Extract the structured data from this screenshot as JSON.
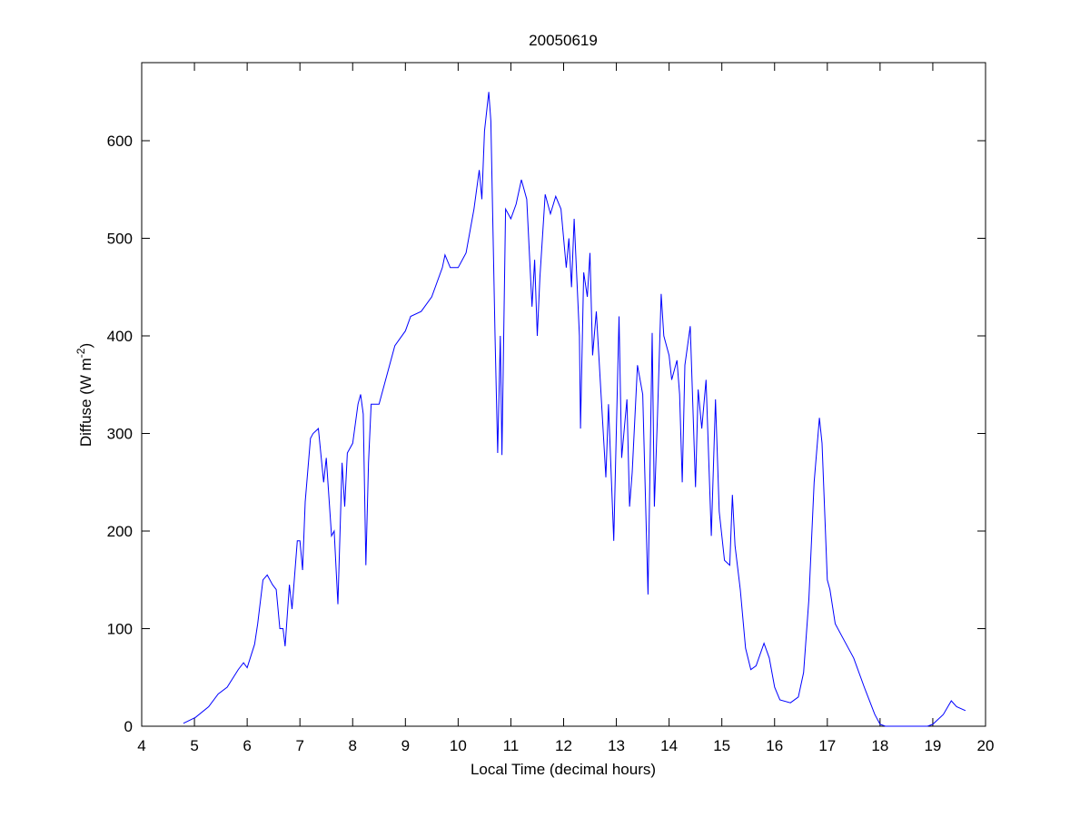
{
  "chart_data": {
    "type": "line",
    "title": "20050619",
    "xlabel": "Local Time (decimal hours)",
    "ylabel_main": "Diffuse (W m",
    "ylabel_sup": "-2",
    "ylabel_close": ")",
    "xlim": [
      4,
      20
    ],
    "ylim": [
      0,
      680
    ],
    "xticks": [
      4,
      5,
      6,
      7,
      8,
      9,
      10,
      11,
      12,
      13,
      14,
      15,
      16,
      17,
      18,
      19,
      20
    ],
    "yticks": [
      0,
      100,
      200,
      300,
      400,
      500,
      600
    ],
    "grid": false,
    "line_color": "#0000ff",
    "series": [
      {
        "x": [
          4.79,
          5.02,
          5.27,
          5.45,
          5.62,
          5.83,
          5.93,
          6.0,
          6.14,
          6.2,
          6.3,
          6.38,
          6.48,
          6.55,
          6.62,
          6.68,
          6.72,
          6.8,
          6.85,
          6.95,
          7.0,
          7.05,
          7.1,
          7.2,
          7.25,
          7.35,
          7.45,
          7.5,
          7.6,
          7.65,
          7.72,
          7.8,
          7.85,
          7.9,
          8.0,
          8.1,
          8.15,
          8.2,
          8.25,
          8.3,
          8.35,
          8.5,
          8.6,
          8.8,
          9.0,
          9.1,
          9.3,
          9.5,
          9.7,
          9.75,
          9.85,
          10.0,
          10.15,
          10.3,
          10.4,
          10.45,
          10.5,
          10.58,
          10.62,
          10.7,
          10.75,
          10.8,
          10.83,
          10.9,
          11.0,
          11.1,
          11.2,
          11.3,
          11.4,
          11.45,
          11.5,
          11.55,
          11.65,
          11.75,
          11.85,
          11.95,
          12.05,
          12.1,
          12.15,
          12.2,
          12.3,
          12.32,
          12.38,
          12.45,
          12.5,
          12.55,
          12.62,
          12.7,
          12.8,
          12.85,
          12.95,
          13.05,
          13.1,
          13.2,
          13.25,
          13.3,
          13.4,
          13.5,
          13.6,
          13.68,
          13.72,
          13.78,
          13.85,
          13.9,
          14.0,
          14.05,
          14.15,
          14.2,
          14.25,
          14.3,
          14.4,
          14.5,
          14.55,
          14.62,
          14.7,
          14.8,
          14.88,
          14.95,
          15.05,
          15.15,
          15.2,
          15.25,
          15.35,
          15.45,
          15.55,
          15.65,
          15.8,
          15.9,
          16.0,
          16.1,
          16.3,
          16.45,
          16.55,
          16.65,
          16.75,
          16.85,
          16.9,
          17.0,
          17.05,
          17.15,
          17.3,
          17.5,
          17.7,
          17.9,
          18.0,
          18.1,
          18.9,
          19.0,
          19.2,
          19.35,
          19.45,
          19.62
        ],
        "y": [
          3,
          9,
          20,
          33,
          40,
          58,
          65,
          60,
          84,
          105,
          150,
          155,
          145,
          140,
          100,
          100,
          82,
          145,
          120,
          190,
          190,
          160,
          230,
          295,
          300,
          305,
          250,
          275,
          195,
          200,
          125,
          270,
          225,
          280,
          290,
          330,
          340,
          320,
          165,
          270,
          330,
          330,
          350,
          390,
          405,
          420,
          425,
          440,
          470,
          483,
          470,
          470,
          485,
          530,
          570,
          540,
          610,
          650,
          620,
          400,
          280,
          400,
          278,
          530,
          520,
          535,
          560,
          540,
          430,
          478,
          400,
          460,
          545,
          525,
          543,
          530,
          470,
          500,
          450,
          520,
          400,
          305,
          465,
          440,
          485,
          380,
          425,
          350,
          255,
          330,
          190,
          420,
          275,
          335,
          225,
          260,
          370,
          340,
          135,
          403,
          225,
          320,
          443,
          400,
          380,
          355,
          375,
          340,
          250,
          370,
          410,
          245,
          345,
          305,
          355,
          195,
          335,
          220,
          170,
          165,
          237,
          185,
          140,
          80,
          58,
          62,
          85,
          70,
          40,
          27,
          24,
          30,
          55,
          130,
          250,
          316,
          290,
          150,
          140,
          105,
          90,
          70,
          40,
          12,
          2,
          0,
          0,
          2,
          12,
          26,
          20,
          16
        ]
      }
    ]
  }
}
